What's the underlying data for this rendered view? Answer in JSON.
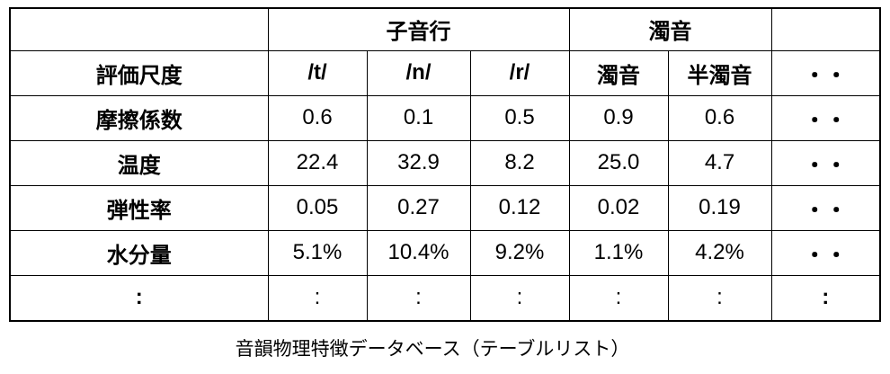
{
  "table": {
    "header_groups": [
      "子音行",
      "濁音"
    ],
    "columns": [
      "評価尺度",
      "/t/",
      "/n/",
      "/r/",
      "濁音",
      "半濁音",
      "・・"
    ],
    "rows": [
      [
        "摩擦係数",
        "0.6",
        "0.1",
        "0.5",
        "0.9",
        "0.6",
        "・・"
      ],
      [
        "温度",
        "22.4",
        "32.9",
        "8.2",
        "25.0",
        "4.7",
        "・・"
      ],
      [
        "弾性率",
        "0.05",
        "0.27",
        "0.12",
        "0.02",
        "0.19",
        "・・"
      ],
      [
        "水分量",
        "5.1%",
        "10.4%",
        "9.2%",
        "1.1%",
        "4.2%",
        "・・"
      ],
      [
        ":",
        ":",
        ":",
        ":",
        ":",
        ":",
        ":"
      ]
    ]
  },
  "caption": "音韻物理特徴データベース（テーブルリスト）"
}
